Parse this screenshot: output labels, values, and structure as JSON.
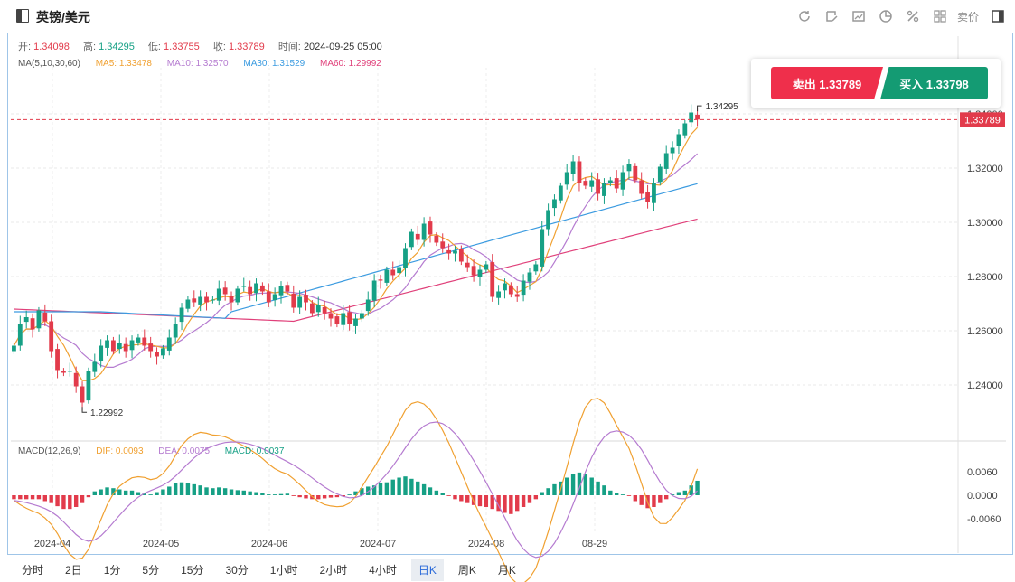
{
  "header": {
    "title": "英镑/美元",
    "tools": [
      "refresh-icon",
      "draw-icon",
      "chart-type-icon",
      "pie-icon",
      "percent-icon",
      "grid-icon"
    ],
    "tool_label": "卖价"
  },
  "ohlc": {
    "open_label": "开:",
    "open": "1.34098",
    "high_label": "高:",
    "high": "1.34295",
    "low_label": "低:",
    "low": "1.33755",
    "close_label": "收:",
    "close": "1.33789",
    "time_label": "时间:",
    "time": "2024-09-25 05:00"
  },
  "ma_legend": {
    "label": "MA(5,10,30,60)",
    "ma5": "MA5: 1.33478",
    "ma10": "MA10: 1.32570",
    "ma30": "MA30: 1.31529",
    "ma60": "MA60: 1.29992"
  },
  "macd_legend": {
    "label": "MACD(12,26,9)",
    "dif": "DIF: 0.0093",
    "dea": "DEA: 0.0075",
    "macd": "MACD: 0.0037"
  },
  "trade": {
    "sell_label": "卖出 1.33789",
    "buy_label": "买入 1.33798"
  },
  "colors": {
    "up": "#16a085",
    "down": "#e23b4b",
    "ma5": "#f0a030",
    "ma10": "#b57bd0",
    "ma30": "#3b9be0",
    "ma60": "#e0407a"
  },
  "chart_data": {
    "type": "candlestick",
    "price_axis": {
      "ticks": [
        "1.34000",
        "1.32000",
        "1.30000",
        "1.28000",
        "1.26000",
        "1.24000"
      ],
      "range": [
        1.222,
        1.357
      ]
    },
    "current_price": "1.33789",
    "high_marker": "1.34295",
    "low_marker": "1.22992",
    "macd_axis": {
      "ticks": [
        "0.0060",
        "0.0000",
        "-0.0060"
      ]
    },
    "x_labels": [
      "2024-04",
      "2024-05",
      "2024-06",
      "2024-07",
      "2024-08",
      "08-29"
    ],
    "closes": [
      1.2545,
      1.2625,
      1.265,
      1.2605,
      1.2675,
      1.2635,
      1.2525,
      1.2455,
      1.2445,
      1.2452,
      1.2395,
      1.2335,
      1.2452,
      1.2485,
      1.2545,
      1.2565,
      1.2525,
      1.2555,
      1.2525,
      1.2565,
      1.2575,
      1.2545,
      1.2525,
      1.2505,
      1.2535,
      1.2575,
      1.2625,
      1.2685,
      1.2715,
      1.2705,
      1.2725,
      1.2705,
      1.2715,
      1.2755,
      1.2735,
      1.2705,
      1.2755,
      1.2765,
      1.2735,
      1.2775,
      1.2745,
      1.2705,
      1.2735,
      1.2765,
      1.2745,
      1.2685,
      1.2725,
      1.2705,
      1.2665,
      1.2695,
      1.2665,
      1.2645,
      1.2625,
      1.2665,
      1.2625,
      1.2645,
      1.2665,
      1.2715,
      1.2785,
      1.2785,
      1.2825,
      1.2805,
      1.2835,
      1.2905,
      1.2965,
      1.2935,
      1.2995,
      1.2955,
      1.2925,
      1.2905,
      1.2885,
      1.2895,
      1.2855,
      1.2835,
      1.2805,
      1.2825,
      1.2845,
      1.2725,
      1.2745,
      1.2775,
      1.2735,
      1.2725,
      1.2785,
      1.2815,
      1.2845,
      1.2975,
      1.3045,
      1.3085,
      1.3135,
      1.3185,
      1.3225,
      1.3145,
      1.3135,
      1.3155,
      1.3105,
      1.3145,
      1.3155,
      1.3125,
      1.3185,
      1.3215,
      1.3155,
      1.3105,
      1.3075,
      1.3145,
      1.3205,
      1.3255,
      1.3275,
      1.3325,
      1.3365,
      1.3405,
      1.3379
    ],
    "macd_hist": [
      -0.001,
      -0.001,
      -0.001,
      -0.001,
      -0.001,
      -0.0015,
      -0.002,
      -0.0028,
      -0.0035,
      -0.0035,
      -0.003,
      -0.002,
      -0.0005,
      0.001,
      0.0015,
      0.002,
      0.0018,
      0.0015,
      0.0012,
      0.0012,
      0.0008,
      0.0005,
      0.0002,
      0.0008,
      0.0015,
      0.0022,
      0.003,
      0.0033,
      0.003,
      0.0028,
      0.0025,
      0.002,
      0.0018,
      0.002,
      0.0018,
      0.0015,
      0.0013,
      0.0012,
      0.001,
      0.0008,
      0.0005,
      0.0002,
      0.0002,
      0.0003,
      0.0004,
      -0.0002,
      -0.0005,
      -0.0008,
      -0.001,
      -0.001,
      -0.0008,
      -0.0006,
      -0.0005,
      -0.0003,
      0.0002,
      0.001,
      0.0018,
      0.0022,
      0.0025,
      0.003,
      0.0033,
      0.004,
      0.0045,
      0.0048,
      0.0042,
      0.0035,
      0.0028,
      0.002,
      0.0012,
      0.0005,
      -0.0002,
      -0.001,
      -0.0015,
      -0.002,
      -0.0025,
      -0.0028,
      -0.003,
      -0.0035,
      -0.004,
      -0.0045,
      -0.0048,
      -0.004,
      -0.003,
      -0.002,
      -0.001,
      0.0008,
      0.0018,
      0.0028,
      0.0035,
      0.0045,
      0.0055,
      0.0058,
      0.0055,
      0.0045,
      0.0035,
      0.0025,
      0.0012,
      0.0005,
      0.0002,
      -0.0002,
      -0.0015,
      -0.0025,
      -0.0033,
      -0.003,
      -0.002,
      -0.001,
      0.0002,
      0.0008,
      0.0012,
      0.0025,
      0.0037
    ]
  },
  "periods": [
    "分时",
    "2日",
    "1分",
    "5分",
    "15分",
    "30分",
    "1小时",
    "2小时",
    "4小时",
    "日K",
    "周K",
    "月K"
  ],
  "active_period": "日K"
}
